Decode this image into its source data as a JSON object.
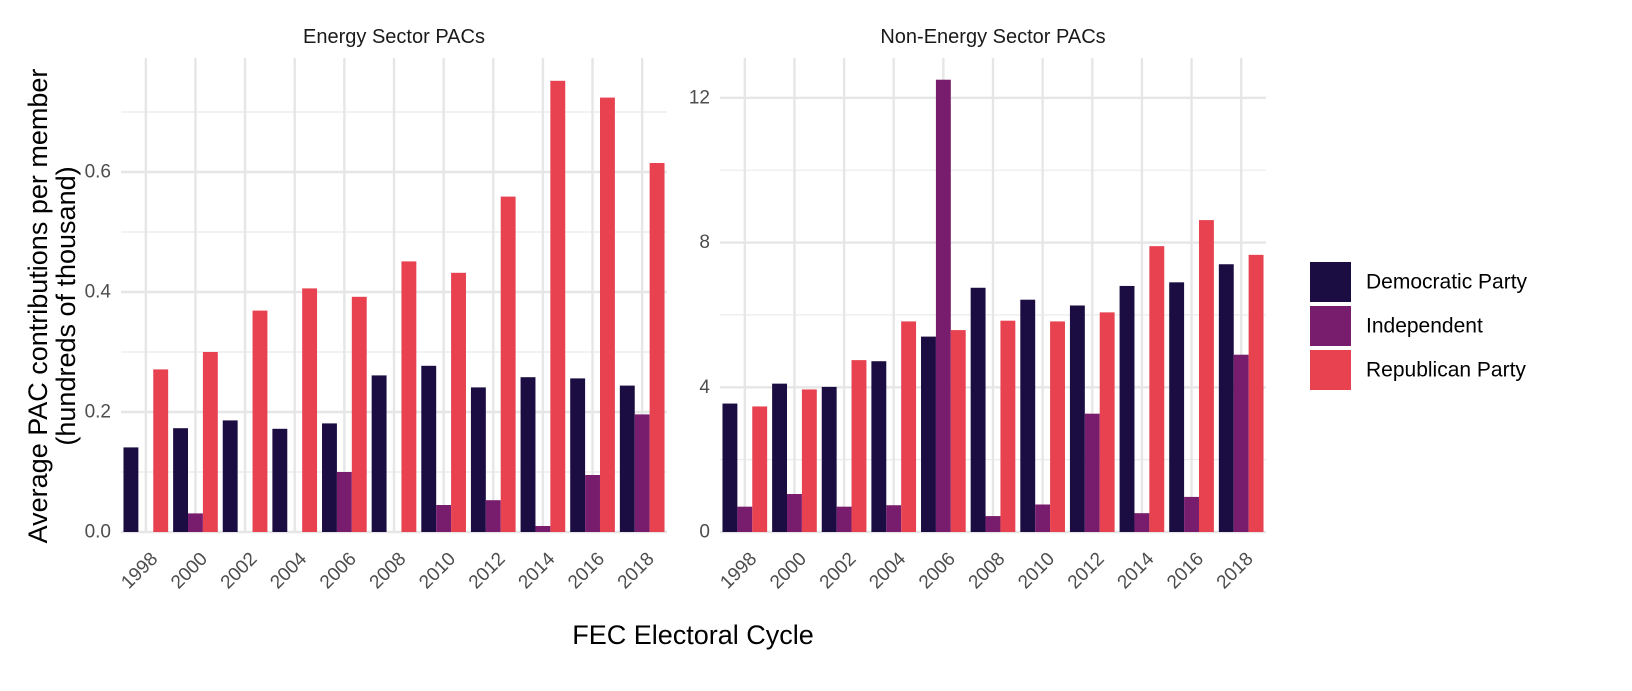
{
  "chart_data": {
    "type": "bar",
    "xlabel": "FEC Electoral Cycle",
    "ylabel_lines": [
      "Average PAC contributions per member",
      "(hundreds of thousand)"
    ],
    "categories": [
      "1998",
      "2000",
      "2002",
      "2004",
      "2006",
      "2008",
      "2010",
      "2012",
      "2014",
      "2016",
      "2018"
    ],
    "legend": {
      "placement": "right",
      "entries": [
        {
          "name": "Democratic Party",
          "color": "#1b0c41"
        },
        {
          "name": "Independent",
          "color": "#781c6d"
        },
        {
          "name": "Republican Party",
          "color": "#e8414f"
        }
      ]
    },
    "grid": true,
    "panels": [
      {
        "title": "Energy Sector PACs",
        "ylim": [
          0,
          0.79
        ],
        "yticks": [
          0,
          0.2,
          0.4,
          0.6
        ],
        "ytick_labels": [
          "0.0",
          "0.2",
          "0.4",
          "0.6"
        ],
        "series": [
          {
            "name": "Democratic Party",
            "values": [
              0.141,
              0.173,
              0.186,
              0.172,
              0.181,
              0.261,
              0.277,
              0.241,
              0.258,
              0.256,
              0.244
            ]
          },
          {
            "name": "Independent",
            "values": [
              null,
              0.031,
              null,
              null,
              0.1,
              null,
              0.045,
              0.053,
              0.01,
              0.095,
              0.196
            ]
          },
          {
            "name": "Republican Party",
            "values": [
              0.271,
              0.3,
              0.369,
              0.406,
              0.392,
              0.451,
              0.432,
              0.559,
              0.752,
              0.724,
              0.615
            ]
          }
        ]
      },
      {
        "title": "Non-Energy Sector PACs",
        "ylim": [
          0,
          13.1
        ],
        "yticks": [
          0,
          4,
          8,
          12
        ],
        "ytick_labels": [
          "0",
          "4",
          "8",
          "12"
        ],
        "series": [
          {
            "name": "Democratic Party",
            "values": [
              3.55,
              4.1,
              4.01,
              4.72,
              5.4,
              6.75,
              6.42,
              6.26,
              6.8,
              6.9,
              7.4
            ]
          },
          {
            "name": "Independent",
            "values": [
              0.7,
              1.05,
              0.7,
              0.74,
              12.5,
              0.44,
              0.76,
              3.27,
              0.52,
              0.97,
              4.9
            ]
          },
          {
            "name": "Republican Party",
            "values": [
              3.47,
              3.94,
              4.75,
              5.82,
              5.58,
              5.84,
              5.82,
              6.07,
              7.9,
              8.62,
              7.66
            ]
          }
        ]
      }
    ]
  }
}
